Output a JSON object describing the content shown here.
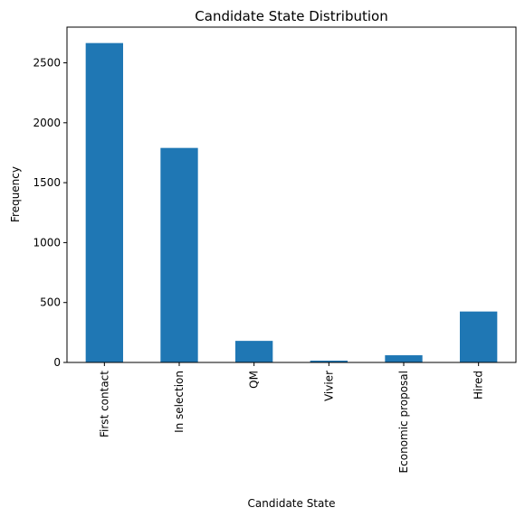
{
  "chart_data": {
    "type": "bar",
    "title": "Candidate State Distribution",
    "xlabel": "Candidate State",
    "ylabel": "Frequency",
    "categories": [
      "First contact",
      "In selection",
      "QM",
      "Vivier",
      "Economic proposal",
      "Hired"
    ],
    "values": [
      2665,
      1790,
      180,
      15,
      60,
      425
    ],
    "ylim": [
      0,
      2798
    ],
    "yticks": [
      0,
      500,
      1000,
      1500,
      2000,
      2500
    ],
    "bar_color": "#1f77b4",
    "grid": false,
    "legend": "none"
  }
}
